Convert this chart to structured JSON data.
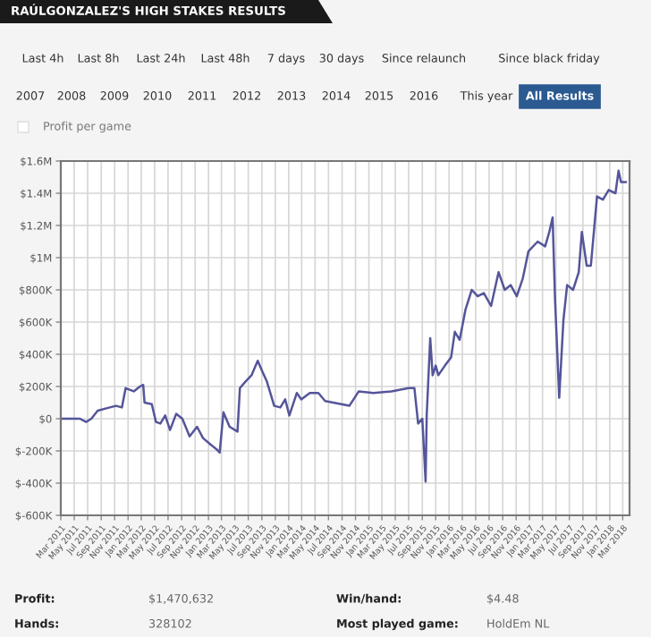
{
  "chart_data": {
    "type": "line",
    "title": "RAÚLGONZALEZ'S HIGH STAKES RESULTS",
    "annotations": [
      "Last 4h",
      "Last 8h",
      "Last 24h",
      "Last 48h",
      "7 days",
      "30 days",
      "Since relaunch",
      "Since black friday",
      "2007",
      "2008",
      "2009",
      "2010",
      "2011",
      "2012",
      "2013",
      "2014",
      "2015",
      "2016",
      "This year",
      "All Results",
      "Profit per game",
      "Profit:",
      "$1,470,632",
      "Win/hand:",
      "$4.48",
      "Hands:",
      "328102",
      "Most played game:",
      "HoldEm NL"
    ],
    "x": [
      "2011-03-01",
      "2011-05-27",
      "2011-06-24",
      "2011-07-18",
      "2011-08-16",
      "2011-10-10",
      "2011-11-07",
      "2011-12-04",
      "2011-12-21",
      "2012-01-27",
      "2012-02-24",
      "2012-03-10",
      "2012-03-16",
      "2012-04-18",
      "2012-05-07",
      "2012-05-27",
      "2012-06-18",
      "2012-07-10",
      "2012-08-07",
      "2012-09-04",
      "2012-10-07",
      "2012-11-10",
      "2012-12-07",
      "2013-01-10",
      "2013-02-07",
      "2013-02-21",
      "2013-03-10",
      "2013-04-07",
      "2013-05-13",
      "2013-05-24",
      "2013-06-18",
      "2013-07-16",
      "2013-08-13",
      "2013-09-04",
      "2013-09-24",
      "2013-10-27",
      "2013-11-24",
      "2013-12-16",
      "2014-01-04",
      "2014-02-07",
      "2014-02-27",
      "2014-04-07",
      "2014-05-16",
      "2014-06-16",
      "2014-10-04",
      "2014-11-16",
      "2015-01-21",
      "2015-04-13",
      "2015-07-01",
      "2015-07-27",
      "2015-08-13",
      "2015-09-01",
      "2015-09-16",
      "2015-09-21",
      "2015-10-07",
      "2015-10-18",
      "2015-11-01",
      "2015-11-13",
      "2015-12-13",
      "2016-01-10",
      "2016-01-27",
      "2016-02-18",
      "2016-03-16",
      "2016-04-13",
      "2016-05-10",
      "2016-06-07",
      "2016-07-10",
      "2016-08-13",
      "2016-09-10",
      "2016-10-07",
      "2016-11-04",
      "2016-12-01",
      "2016-12-27",
      "2017-02-07",
      "2017-03-13",
      "2017-04-01",
      "2017-04-16",
      "2017-04-27",
      "2017-05-16",
      "2017-06-04",
      "2017-06-21",
      "2017-07-18",
      "2017-08-13",
      "2017-08-27",
      "2017-09-18",
      "2017-10-07",
      "2017-11-04",
      "2017-12-01",
      "2017-12-27",
      "2018-01-27",
      "2018-02-10",
      "2018-02-21",
      "2018-03-16"
    ],
    "series": [
      {
        "color": "#55559a",
        "values": [
          0,
          0,
          -20000,
          0,
          50000,
          70000,
          80000,
          70000,
          190000,
          170000,
          200000,
          210000,
          100000,
          90000,
          -20000,
          -30000,
          20000,
          -70000,
          30000,
          0,
          -110000,
          -50000,
          -120000,
          -160000,
          -190000,
          -210000,
          40000,
          -50000,
          -80000,
          190000,
          230000,
          270000,
          360000,
          290000,
          230000,
          80000,
          70000,
          120000,
          20000,
          160000,
          120000,
          160000,
          160000,
          110000,
          80000,
          170000,
          160000,
          170000,
          190000,
          190000,
          -30000,
          0,
          -390000,
          20000,
          500000,
          270000,
          330000,
          270000,
          330000,
          380000,
          540000,
          490000,
          680000,
          800000,
          760000,
          780000,
          700000,
          910000,
          800000,
          830000,
          760000,
          870000,
          1040000,
          1100000,
          1070000,
          1160000,
          1250000,
          740000,
          130000,
          610000,
          830000,
          800000,
          910000,
          1160000,
          950000,
          950000,
          1380000,
          1360000,
          1420000,
          1400000,
          1540000,
          1470000,
          1470000
        ]
      }
    ],
    "xlim": [
      "2011-03-01",
      "2018-04-01"
    ],
    "xticks": [
      {
        "value": "2011-03-01",
        "label": "Mar 2011"
      },
      {
        "value": "2011-05-01",
        "label": "May 2011"
      },
      {
        "value": "2011-07-01",
        "label": "Jul 2011"
      },
      {
        "value": "2011-09-01",
        "label": "Sep 2011"
      },
      {
        "value": "2011-11-01",
        "label": "Nov 2011"
      },
      {
        "value": "2012-01-01",
        "label": "Jan 2012"
      },
      {
        "value": "2012-03-01",
        "label": "Mar 2012"
      },
      {
        "value": "2012-05-01",
        "label": "May 2012"
      },
      {
        "value": "2012-07-01",
        "label": "Jul 2012"
      },
      {
        "value": "2012-09-01",
        "label": "Sep 2012"
      },
      {
        "value": "2012-11-01",
        "label": "Nov 2012"
      },
      {
        "value": "2013-01-01",
        "label": "Jan 2013"
      },
      {
        "value": "2013-03-01",
        "label": "Mar 2013"
      },
      {
        "value": "2013-05-01",
        "label": "May 2013"
      },
      {
        "value": "2013-07-01",
        "label": "Jul 2013"
      },
      {
        "value": "2013-09-01",
        "label": "Sep 2013"
      },
      {
        "value": "2013-11-01",
        "label": "Nov 2013"
      },
      {
        "value": "2014-01-01",
        "label": "Jan 2014"
      },
      {
        "value": "2014-03-01",
        "label": "Mar 2014"
      },
      {
        "value": "2014-05-01",
        "label": "May 2014"
      },
      {
        "value": "2014-07-01",
        "label": "Jul 2014"
      },
      {
        "value": "2014-09-01",
        "label": "Sep 2014"
      },
      {
        "value": "2014-11-01",
        "label": "Nov 2014"
      },
      {
        "value": "2015-01-01",
        "label": "Jan 2015"
      },
      {
        "value": "2015-03-01",
        "label": "Mar 2015"
      },
      {
        "value": "2015-05-01",
        "label": "May 2015"
      },
      {
        "value": "2015-07-01",
        "label": "Jul 2015"
      },
      {
        "value": "2015-09-01",
        "label": "Sep 2015"
      },
      {
        "value": "2015-11-01",
        "label": "Nov 2015"
      },
      {
        "value": "2016-01-01",
        "label": "Jan 2016"
      },
      {
        "value": "2016-03-01",
        "label": "Mar 2016"
      },
      {
        "value": "2016-05-01",
        "label": "May 2016"
      },
      {
        "value": "2016-07-01",
        "label": "Jul 2016"
      },
      {
        "value": "2016-09-01",
        "label": "Sep 2016"
      },
      {
        "value": "2016-11-01",
        "label": "Nov 2016"
      },
      {
        "value": "2017-01-01",
        "label": "Jan 2017"
      },
      {
        "value": "2017-03-01",
        "label": "Mar 2017"
      },
      {
        "value": "2017-05-01",
        "label": "May 2017"
      },
      {
        "value": "2017-07-01",
        "label": "Jul 2017"
      },
      {
        "value": "2017-09-01",
        "label": "Sep 2017"
      },
      {
        "value": "2017-11-01",
        "label": "Nov 2017"
      },
      {
        "value": "2018-01-01",
        "label": "Jan 2018"
      },
      {
        "value": "2018-03-01",
        "label": "Mar 2018"
      }
    ],
    "ylim": [
      -600000,
      1600000
    ],
    "yticks": [
      {
        "value": -600000,
        "label": "$-600K"
      },
      {
        "value": -400000,
        "label": "$-400K"
      },
      {
        "value": -200000,
        "label": "$-200K"
      },
      {
        "value": 0,
        "label": "$0"
      },
      {
        "value": 200000,
        "label": "$200K"
      },
      {
        "value": 400000,
        "label": "$400K"
      },
      {
        "value": 600000,
        "label": "$600K"
      },
      {
        "value": 800000,
        "label": "$800K"
      },
      {
        "value": 1000000,
        "label": "$1M"
      },
      {
        "value": 1200000,
        "label": "$1.2M"
      },
      {
        "value": 1400000,
        "label": "$1.4M"
      },
      {
        "value": 1600000,
        "label": "$1.6M"
      }
    ],
    "grid": true
  }
}
